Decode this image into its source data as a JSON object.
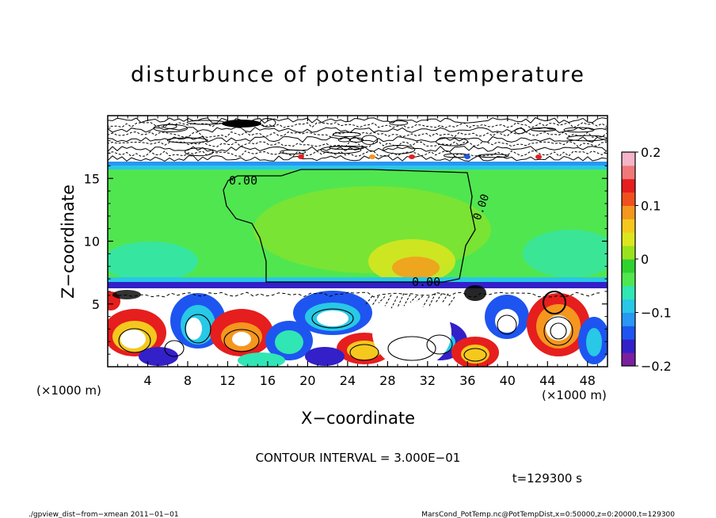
{
  "chart_data": {
    "type": "heatmap",
    "title": "disturbunce of potential temperature",
    "xlabel": "X−coordinate",
    "ylabel": "Z−coordinate",
    "x_unit_left": "(×1000 m)",
    "x_unit_right": "(×1000 m)",
    "xlim": [
      0,
      50
    ],
    "ylim": [
      0,
      20
    ],
    "x_ticks": [
      4,
      8,
      12,
      16,
      20,
      24,
      28,
      32,
      36,
      40,
      44,
      48
    ],
    "y_ticks": [
      5,
      10,
      15
    ],
    "colorbar": {
      "min": -0.2,
      "max": 0.2,
      "tick_values": [
        0.2,
        0.1,
        0,
        -0.1,
        -0.2
      ],
      "tick_labels": [
        "0.2",
        "0.1",
        "0",
        "−0.1",
        "−0.2"
      ],
      "colors": [
        "#7a1fa0",
        "#3320c8",
        "#1e55f0",
        "#2a96f5",
        "#28c8e6",
        "#30e6b4",
        "#50e650",
        "#2fd22f",
        "#9be21e",
        "#dce61e",
        "#f5c81e",
        "#f5961e",
        "#f0501e",
        "#e61e1e",
        "#f07878",
        "#f5b4c8"
      ]
    },
    "contour_label": "0.00",
    "grid": false,
    "legend": "colorbar-right"
  },
  "annotations": {
    "contour_interval": "CONTOUR INTERVAL = 3.000E−01",
    "time": "t=129300  s",
    "footer_left": "./gpview_dist−from−xmean   2011−01−01",
    "footer_right": "MarsCond_PotTemp.nc@PotTempDist,x=0:50000,z=0:20000,t=129300"
  }
}
